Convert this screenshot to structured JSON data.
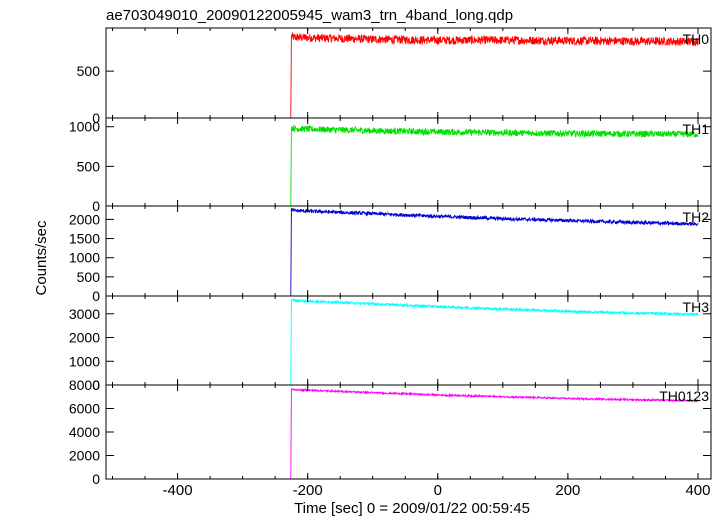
{
  "chart_data": {
    "type": "line",
    "title": "ae703049010_20090122005945_wam3_trn_4band_long.qdp",
    "xlabel": "Time [sec] 0 = 2009/01/22 00:59:45",
    "ylabel": "Counts/sec",
    "xlim": [
      -510,
      420
    ],
    "x_ticks": [
      -400,
      -200,
      0,
      200,
      400
    ],
    "grid": false,
    "step_time": -225,
    "series": [
      {
        "name": "TH0",
        "color": "#ff0000",
        "ylim": [
          0,
          960
        ],
        "y_ticks": [
          0,
          500
        ],
        "x": [
          -500,
          -226,
          -225,
          -220,
          -100,
          0,
          100,
          200,
          300,
          400
        ],
        "y": [
          0,
          0,
          870,
          860,
          840,
          830,
          830,
          825,
          820,
          815
        ],
        "noise": 45
      },
      {
        "name": "TH1",
        "color": "#00e000",
        "ylim": [
          0,
          1110
        ],
        "y_ticks": [
          0,
          500,
          1000
        ],
        "x": [
          -500,
          -226,
          -225,
          -220,
          -100,
          0,
          100,
          200,
          300,
          400
        ],
        "y": [
          0,
          0,
          990,
          975,
          950,
          935,
          925,
          915,
          910,
          905
        ],
        "noise": 40
      },
      {
        "name": "TH2",
        "color": "#0000d0",
        "ylim": [
          0,
          2350
        ],
        "y_ticks": [
          0,
          500,
          1000,
          1500,
          2000
        ],
        "x": [
          -500,
          -226,
          -225,
          -220,
          -100,
          0,
          100,
          200,
          300,
          400
        ],
        "y": [
          0,
          0,
          2260,
          2230,
          2150,
          2080,
          2020,
          1970,
          1920,
          1880
        ],
        "noise": 45
      },
      {
        "name": "TH3",
        "color": "#00ffff",
        "ylim": [
          0,
          3750
        ],
        "y_ticks": [
          0,
          1000,
          2000,
          3000
        ],
        "x": [
          -500,
          -226,
          -225,
          -220,
          -100,
          0,
          100,
          200,
          300,
          400
        ],
        "y": [
          0,
          0,
          3600,
          3560,
          3420,
          3300,
          3200,
          3100,
          3030,
          2980
        ],
        "noise": 50
      },
      {
        "name": "TH0123",
        "color": "#ff00ff",
        "ylim": [
          0,
          8000
        ],
        "y_ticks": [
          0,
          2000,
          4000,
          6000,
          8000
        ],
        "x": [
          -500,
          -226,
          -225,
          -220,
          -100,
          0,
          100,
          200,
          300,
          400
        ],
        "y": [
          0,
          0,
          7650,
          7600,
          7350,
          7150,
          7000,
          6850,
          6750,
          6650
        ],
        "noise": 70
      }
    ]
  }
}
